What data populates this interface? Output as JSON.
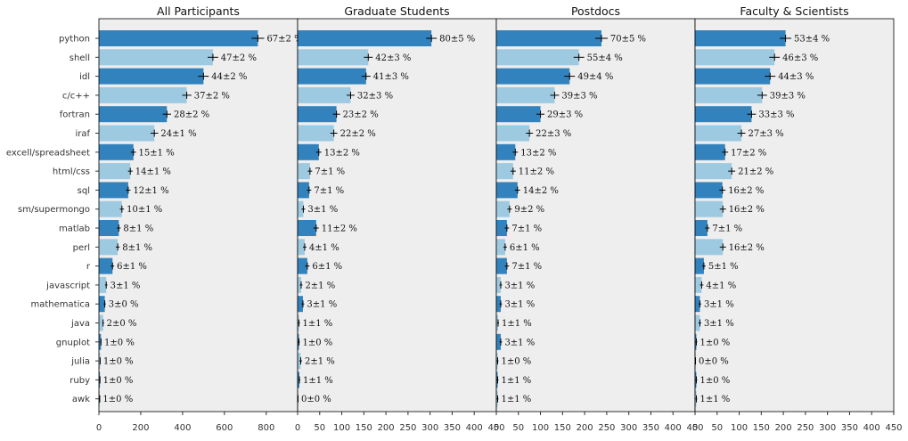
{
  "chart_data": {
    "type": "bar",
    "orientation": "horizontal",
    "categories": [
      "python",
      "shell",
      "idl",
      "c/c++",
      "fortran",
      "iraf",
      "excell/spreadsheet",
      "html/css",
      "sql",
      "sm/supermongo",
      "matlab",
      "perl",
      "r",
      "javascript",
      "mathematica",
      "java",
      "gnuplot",
      "julia",
      "ruby",
      "awk"
    ],
    "colors": {
      "dark": "#3182bd",
      "light": "#9ecae1",
      "background": "#eeeeee"
    },
    "grid": false,
    "panels": [
      {
        "title": "All Participants",
        "xlim": [
          0,
          950
        ],
        "xticks": [
          "0",
          "200",
          "400",
          "600",
          "800"
        ],
        "xtick_values": [
          0,
          200,
          400,
          600,
          800
        ],
        "values": [
          760,
          545,
          500,
          420,
          325,
          265,
          165,
          150,
          140,
          110,
          95,
          90,
          65,
          35,
          28,
          20,
          10,
          6,
          5,
          4
        ],
        "errors": [
          30,
          25,
          25,
          22,
          20,
          18,
          12,
          11,
          11,
          10,
          9,
          9,
          8,
          6,
          5,
          4,
          3,
          2,
          2,
          2
        ],
        "labels": [
          "67±2 %",
          "47±2 %",
          "44±2 %",
          "37±2 %",
          "28±2 %",
          "24±1 %",
          "15±1 %",
          "14±1 %",
          "12±1 %",
          "10±1 %",
          "8±1 %",
          "8±1 %",
          "6±1 %",
          "3±1 %",
          "3±0 %",
          "2±0 %",
          "1±0 %",
          "1±0 %",
          "1±0 %",
          "1±0 %"
        ]
      },
      {
        "title": "Graduate Students",
        "xlim": [
          0,
          450
        ],
        "xticks": [
          "0",
          "50",
          "100",
          "150",
          "200",
          "250",
          "300",
          "350",
          "400",
          "450"
        ],
        "xtick_values": [
          0,
          50,
          100,
          150,
          200,
          250,
          300,
          350,
          400,
          450
        ],
        "values": [
          303,
          160,
          155,
          120,
          88,
          82,
          48,
          28,
          26,
          13,
          42,
          16,
          22,
          8,
          12,
          3,
          3,
          7,
          4,
          1
        ],
        "errors": [
          12,
          10,
          10,
          9,
          8,
          8,
          6,
          5,
          5,
          4,
          6,
          4,
          5,
          3,
          3,
          2,
          2,
          3,
          2,
          1
        ],
        "labels": [
          "80±5 %",
          "42±3 %",
          "41±3 %",
          "32±3 %",
          "23±2 %",
          "22±2 %",
          "13±2 %",
          "7±1 %",
          "7±1 %",
          "3±1 %",
          "11±2 %",
          "4±1 %",
          "6±1 %",
          "2±1 %",
          "3±1 %",
          "1±1 %",
          "1±0 %",
          "2±1 %",
          "1±1 %",
          "0±0 %"
        ]
      },
      {
        "title": "Postdocs",
        "xlim": [
          0,
          450
        ],
        "xticks": [
          "0",
          "50",
          "100",
          "150",
          "200",
          "250",
          "300",
          "350",
          "400",
          "450"
        ],
        "xtick_values": [
          0,
          50,
          100,
          150,
          200,
          250,
          300,
          350,
          400,
          450
        ],
        "values": [
          238,
          187,
          166,
          132,
          100,
          75,
          43,
          38,
          48,
          30,
          24,
          20,
          24,
          10,
          10,
          4,
          10,
          3,
          3,
          3
        ],
        "errors": [
          14,
          12,
          12,
          10,
          9,
          8,
          6,
          6,
          6,
          5,
          5,
          4,
          5,
          3,
          3,
          2,
          3,
          2,
          2,
          2
        ],
        "labels": [
          "70±5 %",
          "55±4 %",
          "49±4 %",
          "39±3 %",
          "29±3 %",
          "22±3 %",
          "13±2 %",
          "11±2 %",
          "14±2 %",
          "9±2 %",
          "7±1 %",
          "6±1 %",
          "7±1 %",
          "3±1 %",
          "3±1 %",
          "1±1 %",
          "3±1 %",
          "1±0 %",
          "1±1 %",
          "1±1 %"
        ]
      },
      {
        "title": "Faculty & Scientists",
        "xlim": [
          0,
          450
        ],
        "xticks": [
          "0",
          "50",
          "100",
          "150",
          "200",
          "250",
          "300",
          "350",
          "400",
          "450"
        ],
        "xtick_values": [
          0,
          50,
          100,
          150,
          200,
          250,
          300,
          350,
          400,
          450
        ],
        "values": [
          205,
          180,
          170,
          152,
          128,
          105,
          68,
          83,
          62,
          63,
          28,
          63,
          20,
          15,
          11,
          11,
          3,
          1,
          3,
          3
        ],
        "errors": [
          13,
          12,
          12,
          11,
          10,
          9,
          7,
          8,
          7,
          7,
          5,
          7,
          4,
          4,
          3,
          3,
          2,
          1,
          2,
          2
        ],
        "labels": [
          "53±4 %",
          "46±3 %",
          "44±3 %",
          "39±3 %",
          "33±3 %",
          "27±3 %",
          "17±2 %",
          "21±2 %",
          "16±2 %",
          "16±2 %",
          "7±1 %",
          "16±2 %",
          "5±1 %",
          "4±1 %",
          "3±1 %",
          "3±1 %",
          "1±0 %",
          "0±0 %",
          "1±0 %",
          "1±1 %"
        ]
      }
    ]
  }
}
